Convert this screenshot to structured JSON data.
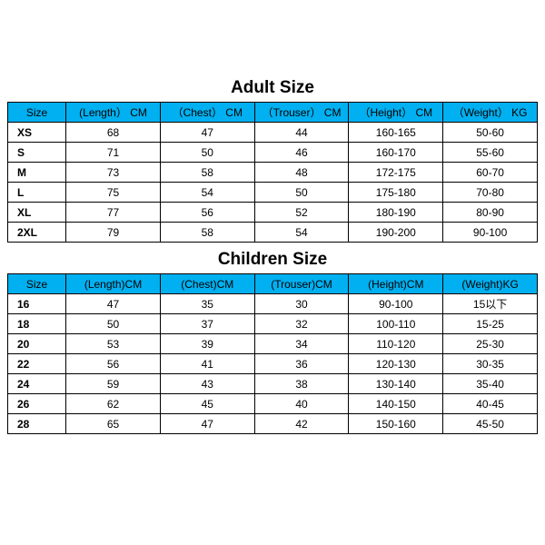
{
  "colors": {
    "header_bg": "#00b0f0",
    "border": "#000000",
    "text": "#000000",
    "background": "#ffffff"
  },
  "adult": {
    "title": "Adult Size",
    "columns": [
      "Size",
      "(Length） CM",
      "（Chest） CM",
      "（Trouser） CM",
      "（Height） CM",
      "（Weight） KG"
    ],
    "rows": [
      [
        "XS",
        "68",
        "47",
        "44",
        "160-165",
        "50-60"
      ],
      [
        "S",
        "71",
        "50",
        "46",
        "160-170",
        "55-60"
      ],
      [
        "M",
        "73",
        "58",
        "48",
        "172-175",
        "60-70"
      ],
      [
        "L",
        "75",
        "54",
        "50",
        "175-180",
        "70-80"
      ],
      [
        "XL",
        "77",
        "56",
        "52",
        "180-190",
        "80-90"
      ],
      [
        "2XL",
        "79",
        "58",
        "54",
        "190-200",
        "90-100"
      ]
    ]
  },
  "children": {
    "title": "Children Size",
    "columns": [
      "Size",
      "(Length)CM",
      "(Chest)CM",
      "(Trouser)CM",
      "(Height)CM",
      "(Weight)KG"
    ],
    "rows": [
      [
        "16",
        "47",
        "35",
        "30",
        "90-100",
        "15以下"
      ],
      [
        "18",
        "50",
        "37",
        "32",
        "100-110",
        "15-25"
      ],
      [
        "20",
        "53",
        "39",
        "34",
        "110-120",
        "25-30"
      ],
      [
        "22",
        "56",
        "41",
        "36",
        "120-130",
        "30-35"
      ],
      [
        "24",
        "59",
        "43",
        "38",
        "130-140",
        "35-40"
      ],
      [
        "26",
        "62",
        "45",
        "40",
        "140-150",
        "40-45"
      ],
      [
        "28",
        "65",
        "47",
        "42",
        "150-160",
        "45-50"
      ]
    ]
  }
}
